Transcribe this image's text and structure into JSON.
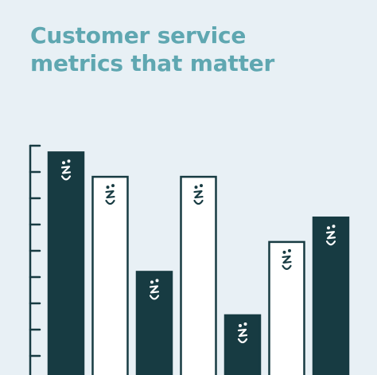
{
  "header": {
    "title_line1": "Customer service",
    "title_line2": "metrics that matter"
  },
  "colors": {
    "background": "#e8f0f5",
    "title": "#5fa7b1",
    "dark_bar": "#173b42",
    "light_bar": "#ffffff",
    "stroke": "#173b42"
  },
  "icons": [
    "face-icon"
  ],
  "chart_data": {
    "type": "bar",
    "title": "",
    "xlabel": "",
    "ylabel": "",
    "ylim": [
      0,
      10
    ],
    "grid": false,
    "legend": "none",
    "categories": [
      "",
      "",
      "",
      "",
      "",
      "",
      ""
    ],
    "values": [
      8.2,
      7.3,
      3.8,
      7.3,
      2.2,
      4.9,
      5.8
    ],
    "bar_styles": [
      "dark",
      "light",
      "dark",
      "light",
      "dark",
      "light",
      "dark"
    ]
  }
}
